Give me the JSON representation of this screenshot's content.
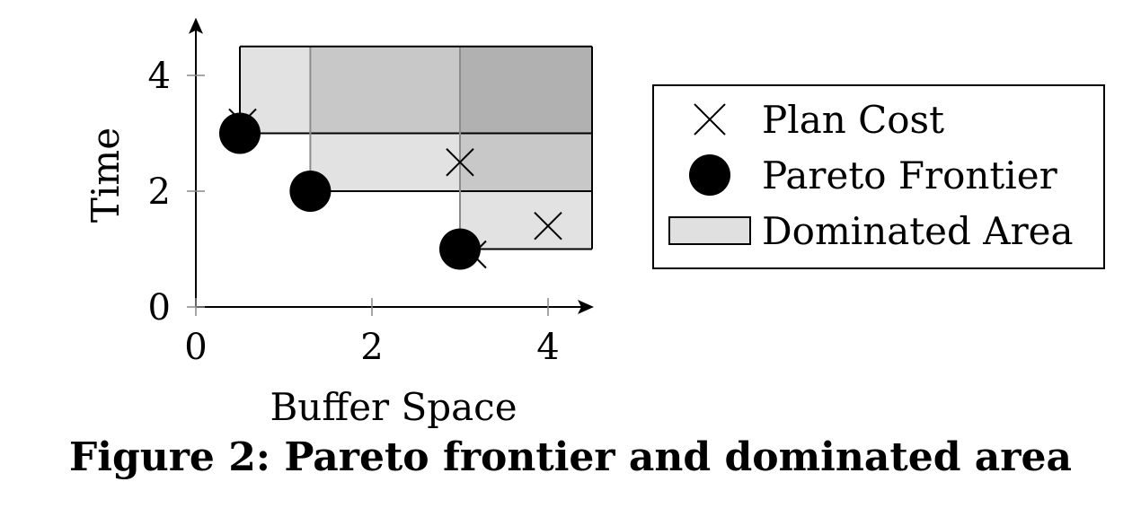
{
  "chart_data": {
    "type": "scatter",
    "title": "",
    "xlabel": "Buffer Space",
    "ylabel": "Time",
    "xlim": [
      0,
      4.5
    ],
    "ylim": [
      0,
      4.5
    ],
    "xticks": [
      "0",
      "2",
      "4"
    ],
    "yticks": [
      "0",
      "2",
      "4"
    ],
    "grid": false,
    "legend_position": "right",
    "series": [
      {
        "name": "Plan Cost",
        "marker": "cross",
        "points": [
          [
            0.5,
            3.0
          ],
          [
            1.3,
            2.0
          ],
          [
            3.0,
            2.5
          ],
          [
            3.0,
            1.0
          ],
          [
            4.0,
            1.4
          ]
        ]
      },
      {
        "name": "Pareto Frontier",
        "marker": "filled-circle",
        "points": [
          [
            0.5,
            3.0
          ],
          [
            1.3,
            2.0
          ],
          [
            3.0,
            1.0
          ]
        ]
      }
    ],
    "dominated_area": {
      "name": "Dominated Area",
      "regions": [
        {
          "x": [
            0.5,
            4.5
          ],
          "y": [
            3.0,
            4.5
          ]
        },
        {
          "x": [
            1.3,
            4.5
          ],
          "y": [
            2.0,
            4.5
          ]
        },
        {
          "x": [
            3.0,
            4.5
          ],
          "y": [
            1.0,
            4.5
          ]
        }
      ]
    },
    "legend": [
      "Plan Cost",
      "Pareto Frontier",
      "Dominated Area"
    ],
    "colors": {
      "area_fill": "#e0e0e0",
      "area_overlap_fill": "#000000",
      "marker": "#000000",
      "divider": "#8c8c8c"
    }
  },
  "caption": "Figure 2: Pareto frontier and dominated area"
}
